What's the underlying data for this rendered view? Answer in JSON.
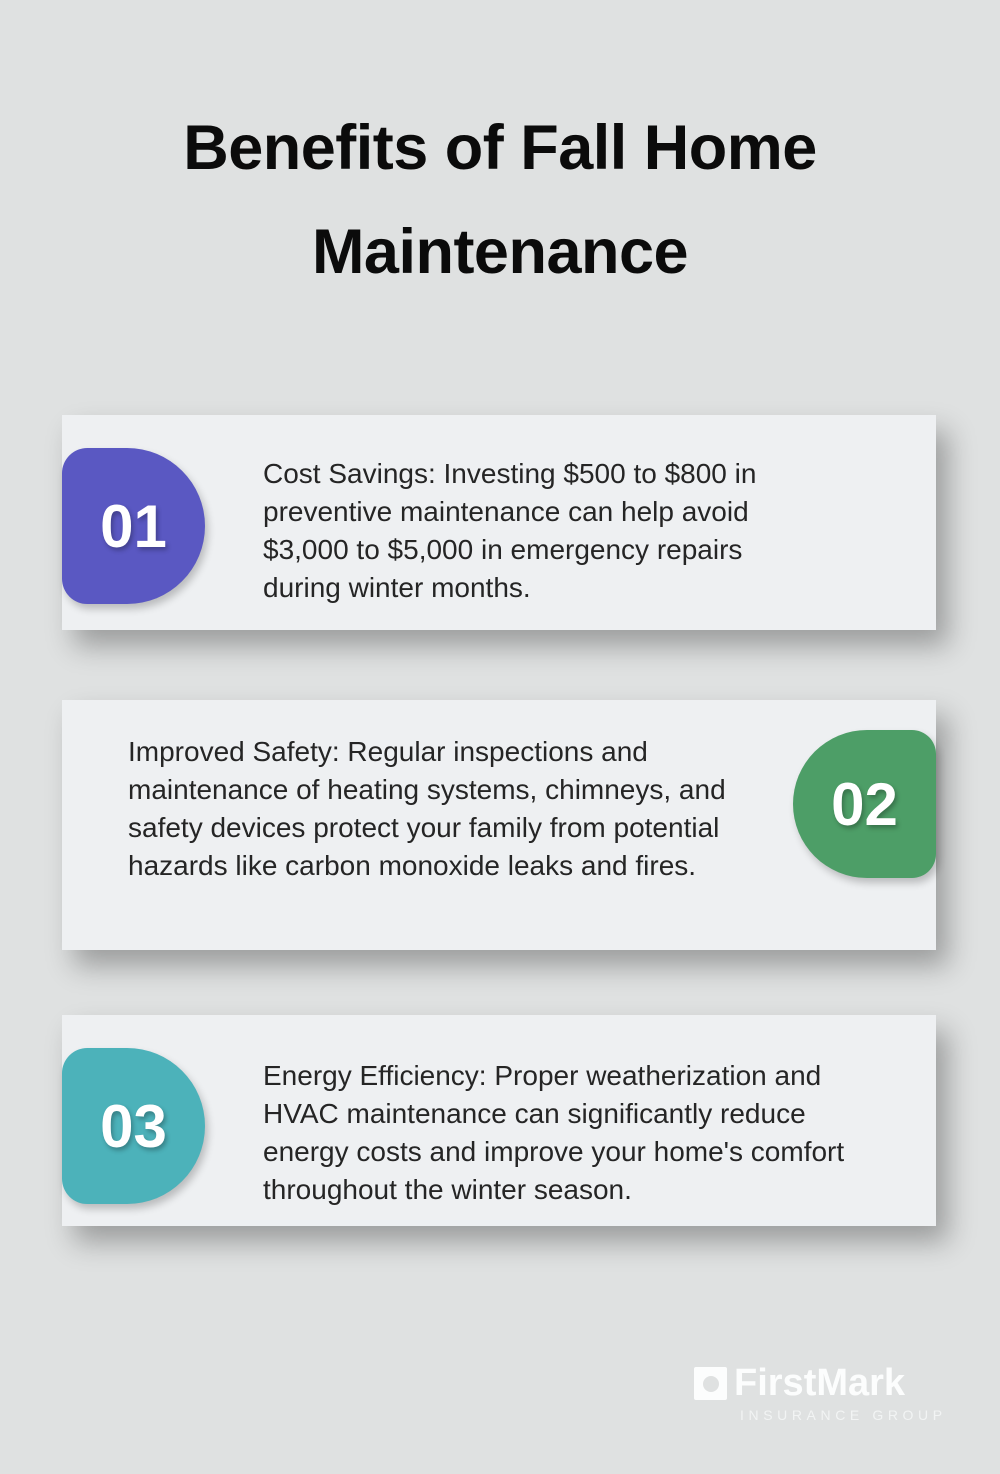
{
  "page": {
    "title": "Benefits of Fall Home Maintenance",
    "background_color": "#dfe1e1",
    "card_color": "#eef0f2"
  },
  "benefits": [
    {
      "number": "01",
      "badge_color": "#5a58c2",
      "badge_side": "left",
      "text": "Cost Savings: Investing $500 to $800 in preventive maintenance can help avoid $3,000 to $5,000 in emergency repairs during winter months."
    },
    {
      "number": "02",
      "badge_color": "#4d9e67",
      "badge_side": "right",
      "text": "Improved Safety: Regular inspections and maintenance of heating systems, chimneys, and safety devices protect your family from potential hazards like carbon monoxide leaks and fires."
    },
    {
      "number": "03",
      "badge_color": "#4cb2ba",
      "badge_side": "left",
      "text": "Energy Efficiency: Proper weatherization and HVAC maintenance can significantly reduce energy costs and improve your home's comfort throughout the winter season."
    }
  ],
  "footer": {
    "brand": "FirstMark",
    "tagline": "INSURANCE GROUP",
    "logo_color": "#fcfdfd"
  }
}
